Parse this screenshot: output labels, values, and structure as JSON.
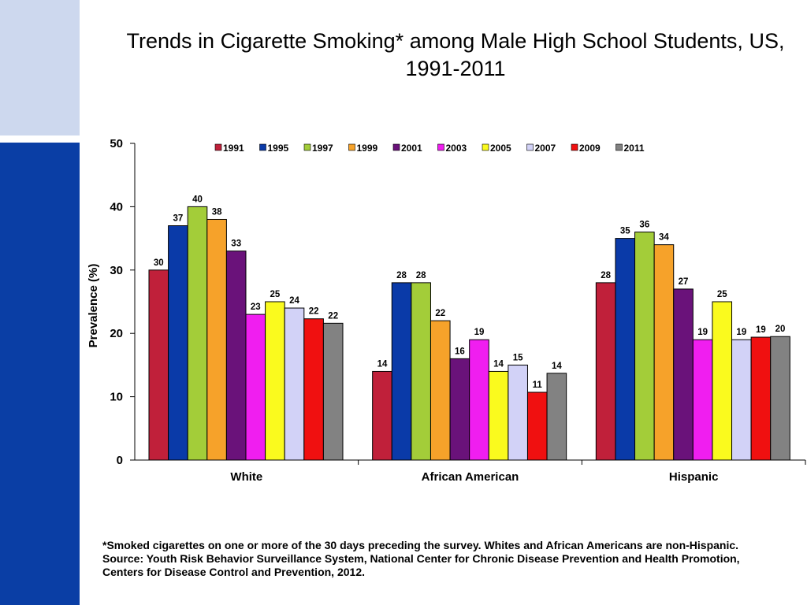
{
  "slide": {
    "title": "Trends in Cigarette Smoking* among Male High School Students, US, 1991-2011",
    "footnote_1": "*Smoked cigarettes on one or more of the 30 days preceding the survey. Whites and African Americans are non-Hispanic.",
    "footnote_2": "Source: Youth Risk Behavior Surveillance System, National Center for Chronic Disease Prevention and Health Promotion, Centers for Disease Control and Prevention, 2012.",
    "colors": {
      "sidebar_light": "#cdd8ee",
      "sidebar_dark": "#0a3ea5"
    }
  },
  "chart_data": {
    "type": "bar",
    "title": "Trends in Cigarette Smoking* among Male High School Students, US, 1991-2011",
    "xlabel": "",
    "ylabel": "Prevalence (%)",
    "ylim": [
      0,
      50
    ],
    "yticks": [
      0,
      10,
      20,
      30,
      40,
      50
    ],
    "grid": false,
    "legend_position": "top",
    "categories": [
      "White",
      "African American",
      "Hispanic"
    ],
    "series": [
      {
        "name": "1991",
        "color": "#c0203a",
        "values": [
          30,
          14,
          28
        ],
        "labels": [
          "30",
          "14",
          "28"
        ]
      },
      {
        "name": "1995",
        "color": "#0a3aa8",
        "values": [
          37,
          28,
          35
        ],
        "labels": [
          "37",
          "28",
          "35"
        ]
      },
      {
        "name": "1997",
        "color": "#a3cd39",
        "values": [
          40,
          28,
          36
        ],
        "labels": [
          "40",
          "28",
          "36"
        ]
      },
      {
        "name": "1999",
        "color": "#f6a22a",
        "values": [
          38,
          22,
          34
        ],
        "labels": [
          "38",
          "22",
          "34"
        ]
      },
      {
        "name": "2001",
        "color": "#6a127a",
        "values": [
          33,
          16,
          27
        ],
        "labels": [
          "33",
          "16",
          "27"
        ]
      },
      {
        "name": "2003",
        "color": "#f01ef0",
        "values": [
          23,
          19,
          19
        ],
        "labels": [
          "23",
          "19",
          "19"
        ]
      },
      {
        "name": "2005",
        "color": "#fafa1e",
        "values": [
          25,
          14,
          25
        ],
        "labels": [
          "25",
          "14",
          "25"
        ]
      },
      {
        "name": "2007",
        "color": "#d2d2f7",
        "values": [
          24,
          15,
          19
        ],
        "labels": [
          "24",
          "15",
          "19"
        ]
      },
      {
        "name": "2009",
        "color": "#f01010",
        "values": [
          22.3,
          10.7,
          19.4
        ],
        "labels": [
          "22",
          "11",
          "19"
        ]
      },
      {
        "name": "2011",
        "color": "#828282",
        "values": [
          21.6,
          13.7,
          19.5
        ],
        "labels": [
          "22",
          "14",
          "20"
        ]
      }
    ]
  }
}
